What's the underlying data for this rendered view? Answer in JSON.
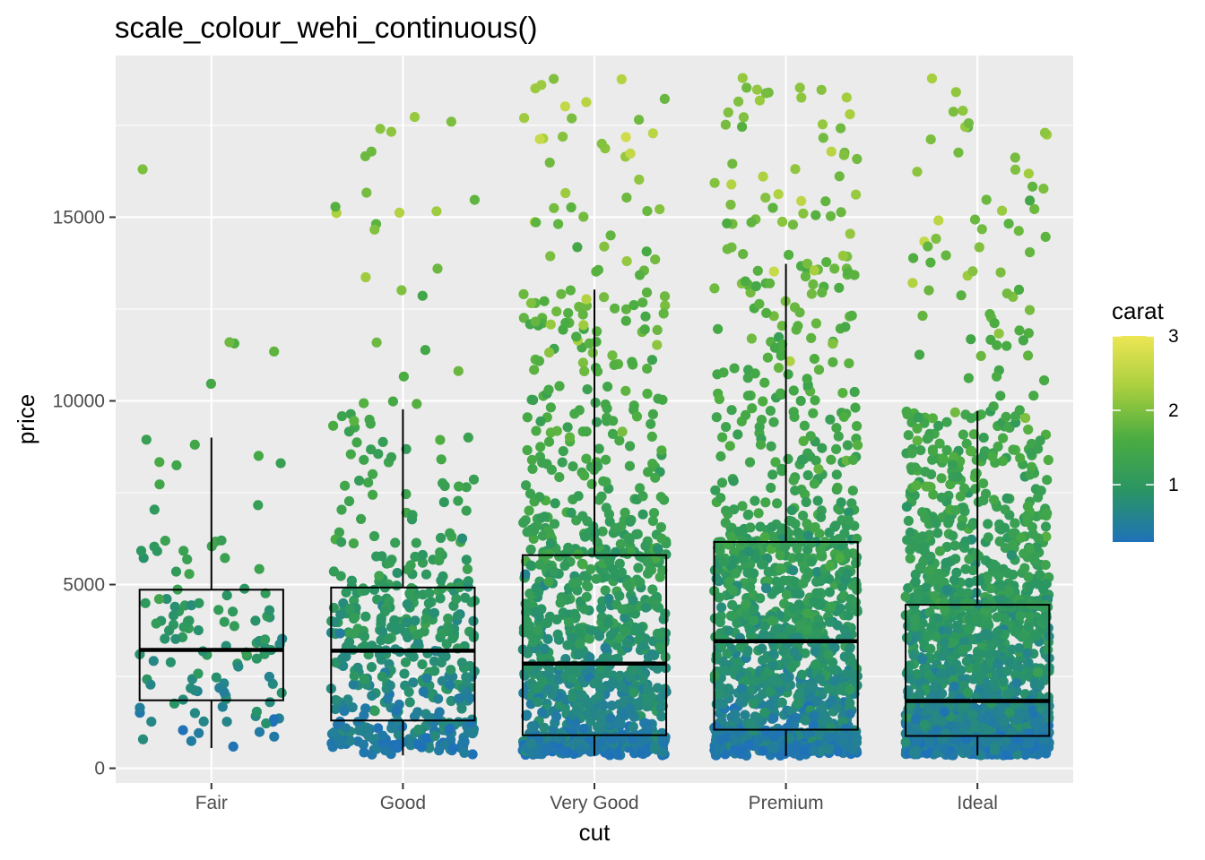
{
  "chart_data": {
    "type": "boxplot-jitter",
    "title": "scale_colour_wehi_continuous()",
    "xlabel": "cut",
    "ylabel": "price",
    "categories": [
      "Fair",
      "Good",
      "Very Good",
      "Premium",
      "Ideal"
    ],
    "ylim": [
      -400,
      19400
    ],
    "yticks": [
      0,
      5000,
      10000,
      15000
    ],
    "ytick_labels": [
      "0",
      "5000",
      "10000",
      "15000"
    ],
    "boxes": [
      {
        "category": "Fair",
        "whisker_low": 550,
        "q1": 1850,
        "median": 3220,
        "q3": 4860,
        "whisker_high": 9000
      },
      {
        "category": "Good",
        "whisker_low": 350,
        "q1": 1300,
        "median": 3200,
        "q3": 4920,
        "whisker_high": 9770
      },
      {
        "category": "Very Good",
        "whisker_low": 350,
        "q1": 900,
        "median": 2850,
        "q3": 5800,
        "whisker_high": 13030
      },
      {
        "category": "Premium",
        "whisker_low": 330,
        "q1": 1050,
        "median": 3460,
        "q3": 6160,
        "whisker_high": 13730
      },
      {
        "category": "Ideal",
        "whisker_low": 350,
        "q1": 880,
        "median": 1830,
        "q3": 4450,
        "whisker_high": 9730
      }
    ],
    "point_counts": [
      120,
      480,
      1150,
      1350,
      1950
    ],
    "legend": {
      "title": "carat",
      "ticks": [
        1,
        2,
        3
      ],
      "tick_labels": [
        "1",
        "2",
        "3"
      ],
      "range": [
        0.23,
        3.0
      ],
      "colors": [
        "#1f72b8",
        "#2a9563",
        "#4aac41",
        "#a8cf3e",
        "#ede655"
      ],
      "placement": "right"
    },
    "grid": true,
    "panel_background": "#ebebeb",
    "box_color": "#000000"
  }
}
